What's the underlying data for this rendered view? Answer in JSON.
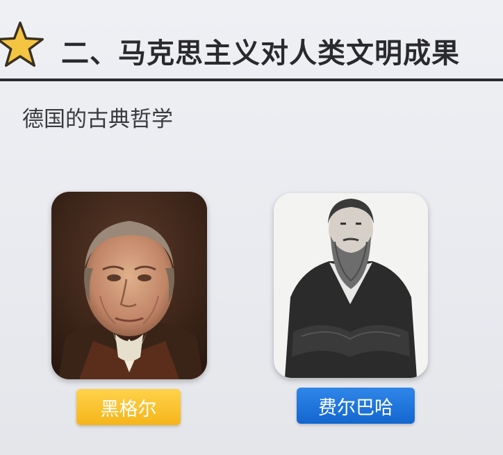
{
  "header": {
    "title": "二、马克思主义对人类文明成果"
  },
  "section": {
    "subtitle": "德国的古典哲学"
  },
  "philosophers": [
    {
      "name": "黑格尔",
      "label_color": "#f8c02a"
    },
    {
      "name": "费尔巴哈",
      "label_color": "#1e74dc"
    }
  ],
  "colors": {
    "star": "#f4c542",
    "title": "#2a2a2e",
    "background": "#e9eaef"
  }
}
